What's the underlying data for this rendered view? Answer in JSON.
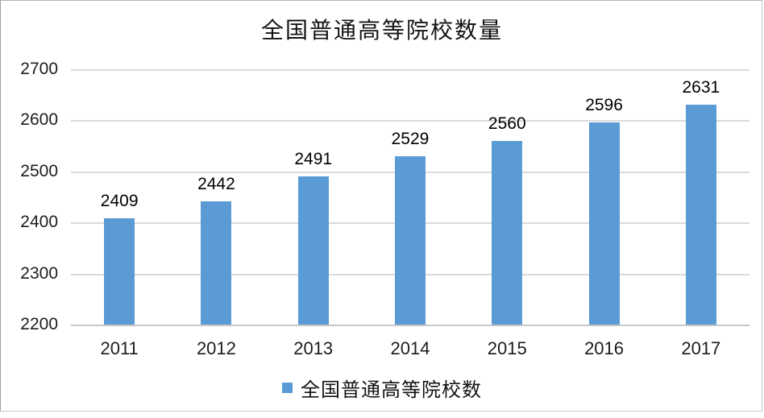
{
  "title": "全国普通高等院校数量",
  "chart_data": {
    "type": "bar",
    "title": "全国普通高等院校数量",
    "categories": [
      "2011",
      "2012",
      "2013",
      "2014",
      "2015",
      "2016",
      "2017"
    ],
    "values": [
      2409,
      2442,
      2491,
      2529,
      2560,
      2596,
      2631
    ],
    "series_name": "全国普通高等院校数",
    "xlabel": "",
    "ylabel": "",
    "ylim": [
      2200,
      2700
    ],
    "yticks": [
      2200,
      2300,
      2400,
      2500,
      2600,
      2700
    ],
    "grid": true,
    "data_labels": true,
    "legend_position": "bottom",
    "bar_color": "#5B9BD5"
  },
  "legend": {
    "label": "全国普通高等院校数",
    "swatch_color": "#5B9BD5"
  },
  "colors": {
    "bar": "#5B9BD5",
    "gridline": "#dadada",
    "axis_line": "#c6c6c6",
    "text": "#1c1c1c",
    "frame_border": "#c9c9c9"
  }
}
